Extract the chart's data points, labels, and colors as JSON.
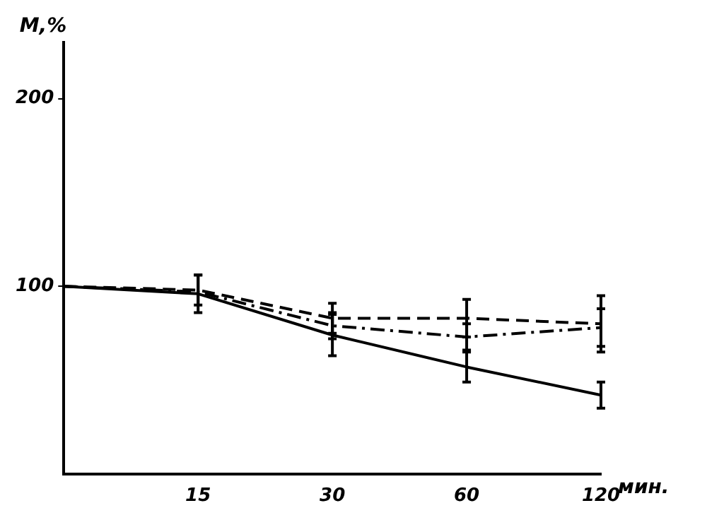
{
  "chart_data": {
    "type": "line",
    "xlabel": "мин.",
    "ylabel": "M,%",
    "categories": [
      null,
      "15",
      "30",
      "60",
      "120"
    ],
    "series": [
      {
        "color": "#000000",
        "line_style": "solid",
        "values": [
          100,
          96,
          74,
          57,
          42
        ],
        "errors": [
          null,
          10,
          11,
          8,
          7
        ]
      },
      {
        "color": "#000000",
        "line_style": "dashed",
        "values": [
          100,
          98,
          83,
          83,
          80
        ],
        "errors": [
          null,
          8,
          8,
          10,
          15
        ]
      },
      {
        "color": "#000000",
        "line_style": "dashdot",
        "values": [
          100,
          97,
          79,
          73,
          78
        ],
        "errors": [
          null,
          null,
          7,
          7,
          10
        ]
      }
    ],
    "ylim": [
      0,
      230
    ],
    "yticks": [
      100,
      200
    ],
    "grid": false,
    "legend": false,
    "marker": "none"
  }
}
